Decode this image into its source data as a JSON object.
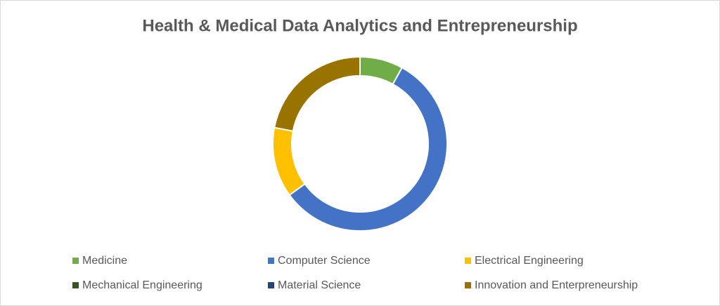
{
  "chart_data": {
    "type": "donut",
    "title": "Health & Medical Data Analytics and Entrepreneurship",
    "categories": [
      "Medicine",
      "Computer Science",
      "Electrical Engineering",
      "Mechanical Engineering",
      "Material Science",
      "Innovation and Enterpreneurship"
    ],
    "values": [
      8,
      57,
      13,
      0,
      0,
      22
    ],
    "colors": [
      "#70ad47",
      "#4472c4",
      "#ffc000",
      "#375623",
      "#264478",
      "#997300"
    ]
  }
}
